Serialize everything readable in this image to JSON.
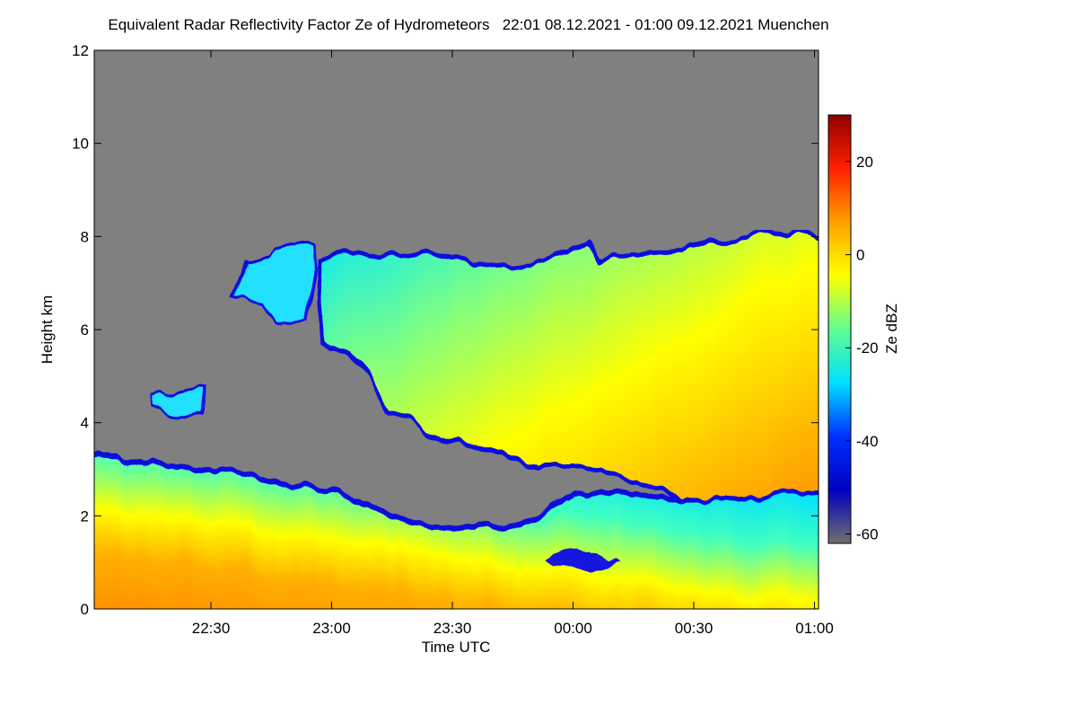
{
  "chart_data": {
    "type": "heatmap",
    "title": "Equivalent Radar Reflectivity Factor Ze of Hydrometeors   22:01 08.12.2021 - 01:00 09.12.2021 Muenchen",
    "xlabel": "Time UTC",
    "ylabel": "Height km",
    "xlim": [
      1,
      181
    ],
    "xticks": [
      {
        "value": 30,
        "label": "22:30"
      },
      {
        "value": 60,
        "label": "23:00"
      },
      {
        "value": 90,
        "label": "23:30"
      },
      {
        "value": 120,
        "label": "00:00"
      },
      {
        "value": 150,
        "label": "00:30"
      },
      {
        "value": 180,
        "label": "01:00"
      }
    ],
    "ylim": [
      0,
      12
    ],
    "yticks": [
      0,
      2,
      4,
      6,
      8,
      10,
      12
    ],
    "colorbar": {
      "label": "Ze dBZ",
      "lim": [
        -62,
        30
      ],
      "ticks": [
        20,
        0,
        -20,
        -40,
        -60
      ],
      "colors": [
        "#707070",
        "#0000c0",
        "#0030ff",
        "#00e0ff",
        "#60ff90",
        "#ffff00",
        "#ffa000",
        "#ff2000",
        "#900000"
      ]
    }
  }
}
